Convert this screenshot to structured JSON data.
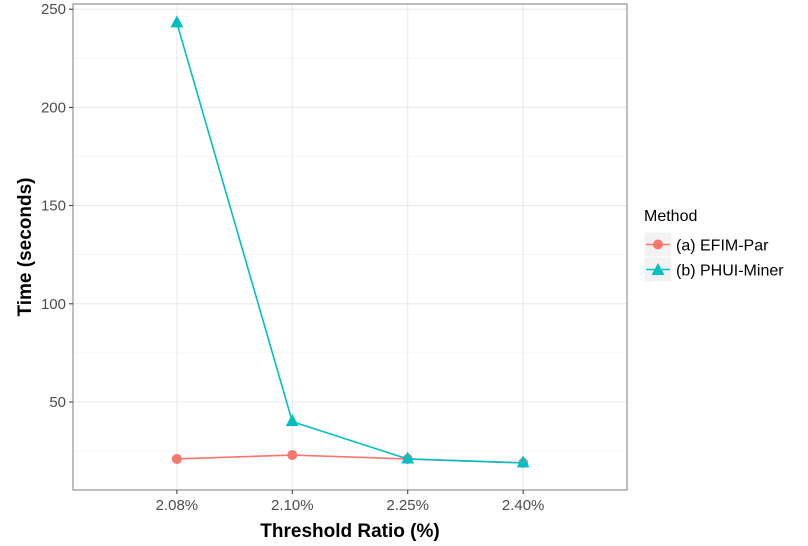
{
  "chart_data": {
    "type": "line",
    "xlabel": "Threshold Ratio (%)",
    "ylabel": "Time (seconds)",
    "categories": [
      "2.08%",
      "2.10%",
      "2.25%",
      "2.40%"
    ],
    "ylim": [
      10,
      250
    ],
    "yticks": [
      50,
      100,
      150,
      200,
      250
    ],
    "grid": true,
    "legend": {
      "title": "Method",
      "placement": "right"
    },
    "series": [
      {
        "name": "(a) EFIM-Par",
        "marker": "circle",
        "color": "#F8766D",
        "values": [
          21,
          23,
          21,
          19
        ]
      },
      {
        "name": "(b) PHUI-Miner",
        "marker": "triangle",
        "color": "#00BFC4",
        "values": [
          243,
          40,
          21,
          19
        ]
      }
    ]
  }
}
